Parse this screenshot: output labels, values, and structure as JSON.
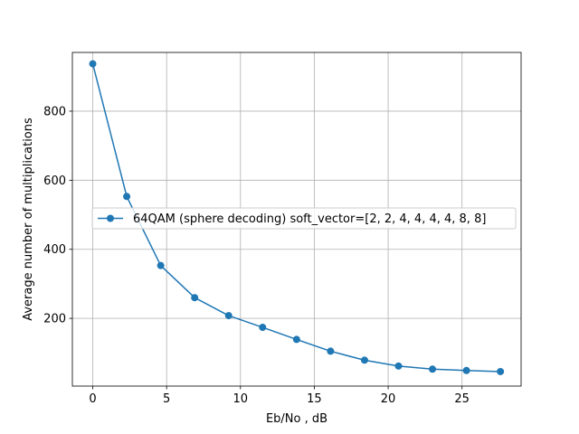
{
  "chart_data": {
    "type": "line",
    "xlabel": "Eb/No , dB",
    "ylabel": "Average number of multiplications",
    "xlim": [
      -1.38,
      29.0
    ],
    "ylim": [
      4,
      970
    ],
    "xticks": [
      0,
      5,
      10,
      15,
      20,
      25
    ],
    "yticks": [
      200,
      400,
      600,
      800
    ],
    "grid": true,
    "legend_position": "center-left",
    "series": [
      {
        "name": "64QAM (sphere decoding) soft_vector=[2, 2, 4, 4, 4, 4, 8, 8]",
        "color": "#1f77b4",
        "marker": "circle",
        "x": [
          0,
          2.3,
          4.6,
          6.9,
          9.2,
          11.5,
          13.8,
          16.1,
          18.4,
          20.7,
          23.0,
          25.3,
          27.6
        ],
        "y": [
          937,
          553,
          353,
          260,
          208,
          174,
          139,
          105,
          79,
          62,
          53,
          49,
          46
        ]
      }
    ]
  }
}
